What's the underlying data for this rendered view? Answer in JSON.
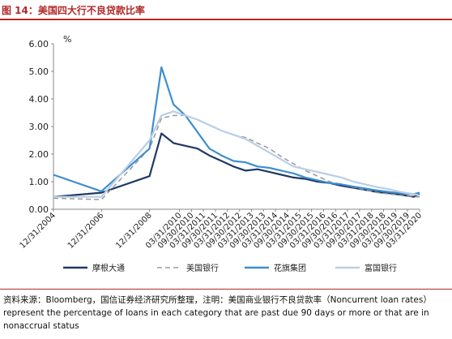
{
  "title": "图 14：美国四大行不良贷款比率",
  "note": "资料来源：Bloomberg，国信证券经济研究所整理，注明：美国商业银行不良贷款率（Noncurrent loan rates）represent the percentage of loans in each category that are past due 90 days or more or that are in nonaccrual status",
  "chart_data": {
    "type": "line",
    "unit_label": "%",
    "ylim": [
      0,
      6
    ],
    "yticks": [
      "0.00",
      "1.00",
      "2.00",
      "3.00",
      "4.00",
      "5.00",
      "6.00"
    ],
    "xlim": [
      "2004-12-31",
      "2020-03-31"
    ],
    "xticks": [
      "12/31/2004",
      "12/31/2006",
      "12/31/2008",
      "03/31/2010",
      "09/30/2010",
      "03/31/2011",
      "09/30/2011",
      "03/31/2012",
      "09/30/2012",
      "03/31/2013",
      "09/30/2013",
      "03/31/2014",
      "09/30/2014",
      "03/31/2015",
      "09/30/2015",
      "03/31/2016",
      "09/30/2016",
      "03/31/2017",
      "09/30/2017",
      "03/31/2018",
      "09/30/2018",
      "03/31/2019",
      "09/30/2019",
      "03/31/2020"
    ],
    "series": [
      {
        "name": "摩根大通",
        "color": "#1f3864",
        "dash": "solid",
        "points": [
          [
            "2004-12-31",
            0.45
          ],
          [
            "2006-12-31",
            0.6
          ],
          [
            "2008-12-31",
            1.2
          ],
          [
            "2009-06-30",
            2.75
          ],
          [
            "2009-12-31",
            2.4
          ],
          [
            "2010-06-30",
            2.3
          ],
          [
            "2010-12-31",
            2.2
          ],
          [
            "2011-06-30",
            1.95
          ],
          [
            "2011-12-31",
            1.75
          ],
          [
            "2012-06-30",
            1.55
          ],
          [
            "2012-12-31",
            1.4
          ],
          [
            "2013-06-30",
            1.45
          ],
          [
            "2013-12-31",
            1.35
          ],
          [
            "2014-06-30",
            1.25
          ],
          [
            "2014-12-31",
            1.15
          ],
          [
            "2015-06-30",
            1.1
          ],
          [
            "2015-12-31",
            1.0
          ],
          [
            "2016-06-30",
            0.95
          ],
          [
            "2016-12-31",
            0.85
          ],
          [
            "2017-06-30",
            0.78
          ],
          [
            "2017-12-31",
            0.7
          ],
          [
            "2018-06-30",
            0.62
          ],
          [
            "2018-12-31",
            0.58
          ],
          [
            "2019-06-30",
            0.52
          ],
          [
            "2019-12-31",
            0.45
          ],
          [
            "2020-03-31",
            0.55
          ]
        ]
      },
      {
        "name": "美国银行",
        "color": "#9a9a9a",
        "dash": "dashed",
        "points": [
          [
            "2004-12-31",
            0.4
          ],
          [
            "2006-12-31",
            0.35
          ],
          [
            "2008-12-31",
            2.2
          ],
          [
            "2009-06-30",
            3.3
          ],
          [
            "2009-12-31",
            3.4
          ],
          [
            "2010-06-30",
            3.4
          ],
          [
            "2010-12-31",
            3.25
          ],
          [
            "2011-06-30",
            3.05
          ],
          [
            "2011-12-31",
            2.85
          ],
          [
            "2012-06-30",
            2.7
          ],
          [
            "2012-12-31",
            2.6
          ],
          [
            "2013-06-30",
            2.4
          ],
          [
            "2013-12-31",
            2.2
          ],
          [
            "2014-06-30",
            1.9
          ],
          [
            "2014-12-31",
            1.65
          ],
          [
            "2015-06-30",
            1.4
          ],
          [
            "2015-12-31",
            1.2
          ],
          [
            "2016-06-30",
            1.0
          ],
          [
            "2016-12-31",
            0.9
          ],
          [
            "2017-06-30",
            0.8
          ],
          [
            "2017-12-31",
            0.7
          ],
          [
            "2018-06-30",
            0.6
          ],
          [
            "2018-12-31",
            0.55
          ],
          [
            "2019-06-30",
            0.5
          ],
          [
            "2019-12-31",
            0.45
          ],
          [
            "2020-03-31",
            0.45
          ]
        ]
      },
      {
        "name": "花旗集团",
        "color": "#3e8ed0",
        "dash": "solid",
        "points": [
          [
            "2004-12-31",
            1.25
          ],
          [
            "2006-12-31",
            0.65
          ],
          [
            "2008-12-31",
            2.2
          ],
          [
            "2009-06-30",
            5.15
          ],
          [
            "2009-12-31",
            3.8
          ],
          [
            "2010-06-30",
            3.4
          ],
          [
            "2010-12-31",
            2.8
          ],
          [
            "2011-06-30",
            2.2
          ],
          [
            "2011-12-31",
            1.95
          ],
          [
            "2012-06-30",
            1.75
          ],
          [
            "2012-12-31",
            1.7
          ],
          [
            "2013-06-30",
            1.55
          ],
          [
            "2013-12-31",
            1.5
          ],
          [
            "2014-06-30",
            1.4
          ],
          [
            "2014-12-31",
            1.3
          ],
          [
            "2015-06-30",
            1.15
          ],
          [
            "2015-12-31",
            1.05
          ],
          [
            "2016-06-30",
            0.95
          ],
          [
            "2016-12-31",
            0.9
          ],
          [
            "2017-06-30",
            0.82
          ],
          [
            "2017-12-31",
            0.75
          ],
          [
            "2018-06-30",
            0.68
          ],
          [
            "2018-12-31",
            0.62
          ],
          [
            "2019-06-30",
            0.58
          ],
          [
            "2019-12-31",
            0.55
          ],
          [
            "2020-03-31",
            0.6
          ]
        ]
      },
      {
        "name": "富国银行",
        "color": "#b8cfe6",
        "dash": "solid",
        "points": [
          [
            "2004-12-31",
            0.45
          ],
          [
            "2006-12-31",
            0.45
          ],
          [
            "2008-12-31",
            2.5
          ],
          [
            "2009-06-30",
            3.4
          ],
          [
            "2009-12-31",
            3.55
          ],
          [
            "2010-06-30",
            3.4
          ],
          [
            "2010-12-31",
            3.25
          ],
          [
            "2011-06-30",
            3.05
          ],
          [
            "2011-12-31",
            2.85
          ],
          [
            "2012-06-30",
            2.7
          ],
          [
            "2012-12-31",
            2.55
          ],
          [
            "2013-06-30",
            2.3
          ],
          [
            "2013-12-31",
            2.05
          ],
          [
            "2014-06-30",
            1.8
          ],
          [
            "2014-12-31",
            1.55
          ],
          [
            "2015-06-30",
            1.45
          ],
          [
            "2015-12-31",
            1.35
          ],
          [
            "2016-06-30",
            1.25
          ],
          [
            "2016-12-31",
            1.15
          ],
          [
            "2017-06-30",
            1.0
          ],
          [
            "2017-12-31",
            0.9
          ],
          [
            "2018-06-30",
            0.8
          ],
          [
            "2018-12-31",
            0.72
          ],
          [
            "2019-06-30",
            0.62
          ],
          [
            "2019-12-31",
            0.55
          ],
          [
            "2020-03-31",
            0.5
          ]
        ]
      }
    ],
    "legend_position": "bottom",
    "grid": false
  }
}
